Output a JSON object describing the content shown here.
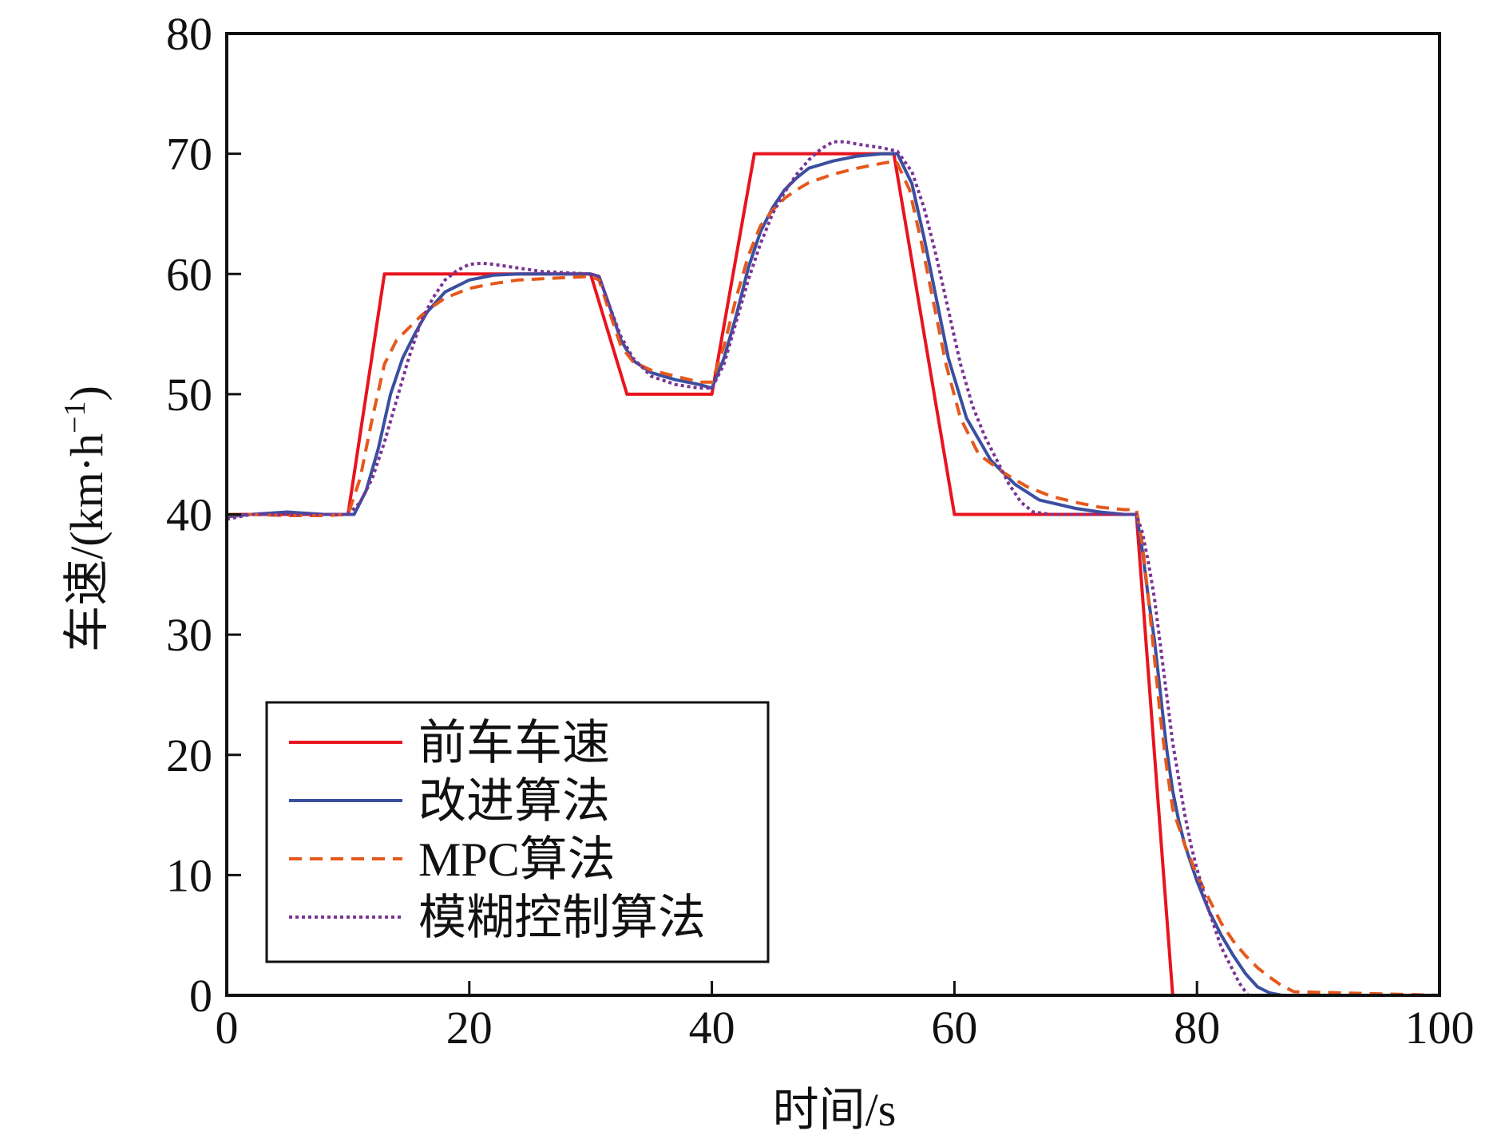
{
  "chart_data": {
    "type": "line",
    "xlabel": "时间/s",
    "ylabel": "车速/(km·h⁻¹)",
    "ylabel_parts": {
      "main": "车速/(km·h",
      "sup": "−1",
      "close": ")"
    },
    "xlim": [
      0,
      100
    ],
    "ylim": [
      0,
      80
    ],
    "xticks": [
      0,
      20,
      40,
      60,
      80,
      100
    ],
    "yticks": [
      0,
      10,
      20,
      30,
      40,
      50,
      60,
      70,
      80
    ],
    "grid": false,
    "legend_position": "lower-left",
    "series": [
      {
        "name": "前车车速",
        "color": "#e8141e",
        "style": "solid",
        "x": [
          0,
          10,
          13,
          30,
          33,
          40,
          43.5,
          55,
          60,
          75,
          78,
          100
        ],
        "y": [
          40,
          40,
          60,
          60,
          50,
          50,
          70,
          70,
          40,
          40,
          0,
          0
        ]
      },
      {
        "name": "改进算法",
        "color": "#3a4fa0",
        "style": "solid",
        "x": [
          0,
          2,
          5,
          8,
          10.5,
          11.5,
          12.5,
          13.5,
          14.5,
          15.5,
          16.5,
          18,
          20,
          22,
          24,
          26,
          28,
          30,
          30.7,
          31.5,
          32.5,
          33.5,
          35,
          37,
          39,
          40,
          41,
          42,
          43,
          44,
          45,
          46,
          47,
          48,
          50,
          52,
          54,
          55.3,
          56.5,
          57.5,
          58.5,
          59.5,
          61,
          63,
          65,
          67,
          70,
          72,
          74,
          75,
          75.5,
          76,
          76.5,
          77,
          77.5,
          78,
          78.5,
          79,
          80,
          81,
          82,
          83,
          84,
          85,
          86,
          87,
          88,
          100
        ],
        "y": [
          39.8,
          40,
          40.2,
          40,
          40,
          42,
          45.5,
          50,
          53,
          55,
          56.8,
          58.5,
          59.5,
          59.9,
          60,
          60,
          60,
          60,
          59.8,
          57.5,
          54.5,
          52.8,
          51.8,
          51.2,
          50.8,
          50.5,
          53,
          56.5,
          60.5,
          63.5,
          65.5,
          67,
          68,
          68.8,
          69.4,
          69.8,
          70,
          70,
          67.5,
          63,
          58,
          53,
          48,
          44.5,
          42.5,
          41.2,
          40.5,
          40.2,
          40,
          40,
          37,
          33,
          29.5,
          25,
          20.5,
          17,
          14.5,
          12.5,
          9.5,
          7,
          5,
          3.3,
          1.8,
          0.7,
          0.2,
          0,
          0,
          0
        ]
      },
      {
        "name": "MPC算法",
        "color": "#e5591c",
        "style": "dashed",
        "x": [
          0,
          2,
          5,
          8,
          10,
          11,
          12,
          13,
          14,
          15,
          16,
          17,
          18,
          20,
          22,
          24,
          26,
          28,
          30,
          30.7,
          31.5,
          32.5,
          33.5,
          35,
          37,
          39,
          40,
          41,
          42,
          43,
          44,
          45,
          46,
          47,
          48,
          50,
          52,
          54,
          55.2,
          56.3,
          57.3,
          58.3,
          59.3,
          60.5,
          62,
          64,
          66,
          68,
          70,
          72,
          74,
          75,
          75.5,
          76,
          76.5,
          77,
          77.5,
          78,
          79,
          80,
          81,
          82,
          83,
          84,
          85,
          86,
          87,
          88,
          100
        ],
        "y": [
          40,
          40,
          39.9,
          39.9,
          40,
          43,
          48,
          52.5,
          54.5,
          55.5,
          56.5,
          57.3,
          58,
          58.8,
          59.2,
          59.5,
          59.6,
          59.7,
          59.8,
          59.5,
          57,
          54,
          52.7,
          52,
          51.5,
          51,
          51,
          54,
          58,
          61.5,
          64,
          65.3,
          66.3,
          67,
          67.6,
          68.3,
          68.8,
          69.2,
          69.4,
          67,
          62.5,
          57.5,
          52.5,
          48,
          45,
          43.5,
          42.3,
          41.5,
          41,
          40.6,
          40.4,
          40.4,
          37.5,
          33,
          28,
          23,
          19,
          15.5,
          12.5,
          10,
          8,
          6,
          4.5,
          3.3,
          2.3,
          1.5,
          0.8,
          0.3,
          0
        ]
      },
      {
        "name": "模糊控制算法",
        "color": "#7a3494",
        "style": "dotted",
        "x": [
          0,
          2,
          5,
          8,
          10,
          11,
          12,
          13,
          14,
          15,
          16,
          17,
          18,
          19,
          20,
          21,
          22,
          24,
          26,
          28,
          30,
          30.7,
          31.5,
          32.5,
          33.5,
          35,
          37,
          39,
          40,
          41,
          42,
          43,
          44,
          45,
          46,
          47,
          48,
          49,
          50,
          51,
          52,
          54,
          55.3,
          56.5,
          57.5,
          58.5,
          59.5,
          60.5,
          61.5,
          62.5,
          63.5,
          64.5,
          65.5,
          66.5,
          68,
          70,
          72,
          74,
          75,
          75.5,
          76,
          76.5,
          77,
          77.5,
          78,
          78.5,
          79,
          79.5,
          80,
          81,
          82,
          83,
          83.5,
          84,
          84.2,
          100
        ],
        "y": [
          39.6,
          40,
          40,
          40,
          40,
          41,
          43,
          46,
          49.5,
          53,
          56,
          58,
          59.5,
          60.3,
          60.8,
          60.9,
          60.8,
          60.5,
          60.2,
          60.1,
          60,
          59.8,
          57.5,
          54.8,
          53,
          51.5,
          50.8,
          50.5,
          50.5,
          52.5,
          56,
          59.5,
          62.5,
          65,
          66.8,
          68.3,
          69.5,
          70.4,
          71,
          71,
          70.8,
          70.5,
          70.2,
          68.5,
          65.5,
          61.5,
          57,
          52.5,
          49,
          46.5,
          44.5,
          42.5,
          41,
          40.2,
          40,
          40,
          40,
          40,
          40,
          38.5,
          36,
          33,
          29,
          25,
          21,
          18,
          15,
          12.5,
          10.5,
          7,
          4,
          2,
          1,
          0.3,
          0,
          0
        ]
      }
    ]
  }
}
